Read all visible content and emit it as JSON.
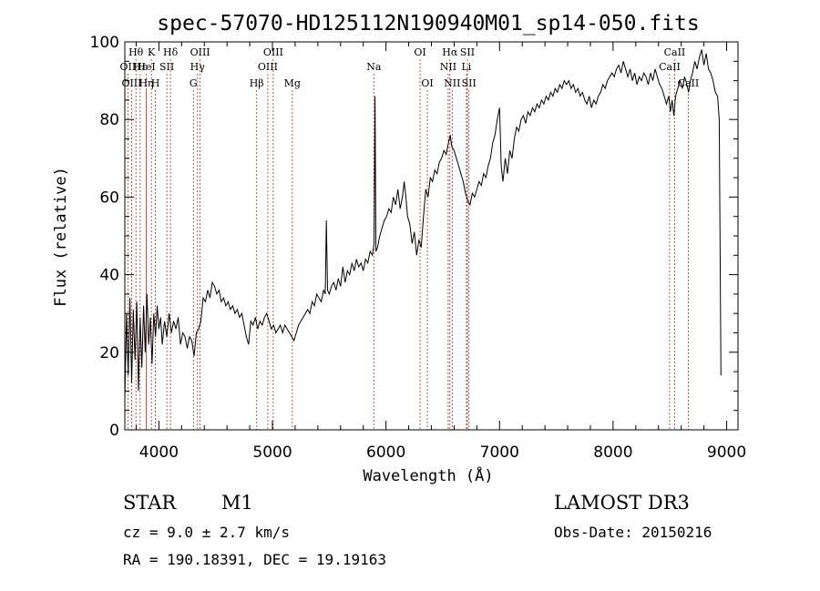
{
  "chart_data": {
    "type": "line",
    "title": "spec-57070-HD125112N190940M01_sp14-050.fits",
    "xlabel": "Wavelength (Å)",
    "ylabel": "Flux (relative)",
    "xlim": [
      3700,
      9100
    ],
    "ylim": [
      0,
      100
    ],
    "xticks": [
      4000,
      5000,
      6000,
      7000,
      8000,
      9000
    ],
    "yticks": [
      0,
      20,
      40,
      60,
      80,
      100
    ],
    "series": [
      {
        "name": "flux",
        "points": [
          [
            3700,
            8
          ],
          [
            3715,
            30
          ],
          [
            3730,
            14
          ],
          [
            3745,
            34
          ],
          [
            3760,
            12
          ],
          [
            3775,
            31
          ],
          [
            3790,
            18
          ],
          [
            3805,
            33
          ],
          [
            3820,
            10
          ],
          [
            3835,
            29
          ],
          [
            3850,
            16
          ],
          [
            3865,
            32
          ],
          [
            3880,
            20
          ],
          [
            3895,
            35
          ],
          [
            3910,
            22
          ],
          [
            3925,
            29
          ],
          [
            3940,
            17
          ],
          [
            3955,
            30
          ],
          [
            3970,
            24
          ],
          [
            3985,
            32
          ],
          [
            4000,
            26
          ],
          [
            4015,
            29
          ],
          [
            4030,
            22
          ],
          [
            4050,
            28
          ],
          [
            4070,
            24
          ],
          [
            4090,
            30
          ],
          [
            4110,
            25
          ],
          [
            4130,
            28
          ],
          [
            4150,
            26
          ],
          [
            4170,
            29
          ],
          [
            4190,
            22
          ],
          [
            4210,
            25
          ],
          [
            4230,
            24
          ],
          [
            4250,
            21
          ],
          [
            4270,
            24
          ],
          [
            4290,
            23
          ],
          [
            4310,
            19
          ],
          [
            4330,
            25
          ],
          [
            4350,
            26
          ],
          [
            4370,
            28
          ],
          [
            4390,
            34
          ],
          [
            4410,
            33
          ],
          [
            4430,
            36
          ],
          [
            4450,
            34
          ],
          [
            4470,
            38
          ],
          [
            4490,
            37
          ],
          [
            4510,
            35
          ],
          [
            4530,
            36
          ],
          [
            4550,
            33
          ],
          [
            4570,
            34
          ],
          [
            4590,
            32
          ],
          [
            4610,
            33
          ],
          [
            4630,
            31
          ],
          [
            4650,
            32
          ],
          [
            4670,
            30
          ],
          [
            4690,
            31
          ],
          [
            4710,
            29
          ],
          [
            4730,
            30
          ],
          [
            4750,
            27
          ],
          [
            4770,
            24
          ],
          [
            4790,
            22
          ],
          [
            4810,
            28
          ],
          [
            4830,
            27
          ],
          [
            4850,
            29
          ],
          [
            4870,
            26
          ],
          [
            4890,
            28
          ],
          [
            4910,
            27
          ],
          [
            4930,
            29
          ],
          [
            4950,
            30
          ],
          [
            4970,
            28
          ],
          [
            4990,
            26
          ],
          [
            5010,
            27
          ],
          [
            5030,
            25
          ],
          [
            5050,
            26
          ],
          [
            5070,
            27
          ],
          [
            5090,
            25
          ],
          [
            5110,
            27
          ],
          [
            5130,
            26
          ],
          [
            5150,
            25
          ],
          [
            5170,
            24
          ],
          [
            5190,
            23
          ],
          [
            5210,
            25
          ],
          [
            5230,
            27
          ],
          [
            5250,
            28
          ],
          [
            5270,
            29
          ],
          [
            5290,
            30
          ],
          [
            5310,
            31
          ],
          [
            5330,
            30
          ],
          [
            5350,
            33
          ],
          [
            5370,
            32
          ],
          [
            5390,
            35
          ],
          [
            5410,
            34
          ],
          [
            5430,
            33
          ],
          [
            5450,
            36
          ],
          [
            5465,
            35
          ],
          [
            5475,
            54
          ],
          [
            5485,
            36
          ],
          [
            5500,
            35
          ],
          [
            5520,
            37
          ],
          [
            5540,
            38
          ],
          [
            5560,
            36
          ],
          [
            5580,
            39
          ],
          [
            5600,
            37
          ],
          [
            5620,
            42
          ],
          [
            5640,
            38
          ],
          [
            5660,
            41
          ],
          [
            5680,
            40
          ],
          [
            5700,
            43
          ],
          [
            5720,
            41
          ],
          [
            5740,
            44
          ],
          [
            5760,
            42
          ],
          [
            5780,
            43
          ],
          [
            5800,
            41
          ],
          [
            5820,
            44
          ],
          [
            5840,
            43
          ],
          [
            5860,
            46
          ],
          [
            5880,
            45
          ],
          [
            5895,
            48
          ],
          [
            5903,
            86
          ],
          [
            5911,
            46
          ],
          [
            5925,
            47
          ],
          [
            5945,
            50
          ],
          [
            5965,
            52
          ],
          [
            5985,
            54
          ],
          [
            6005,
            55
          ],
          [
            6025,
            57
          ],
          [
            6045,
            56
          ],
          [
            6065,
            60
          ],
          [
            6085,
            58
          ],
          [
            6105,
            62
          ],
          [
            6125,
            57
          ],
          [
            6145,
            60
          ],
          [
            6160,
            64
          ],
          [
            6175,
            60
          ],
          [
            6190,
            55
          ],
          [
            6210,
            53
          ],
          [
            6230,
            48
          ],
          [
            6250,
            51
          ],
          [
            6270,
            45
          ],
          [
            6290,
            49
          ],
          [
            6310,
            47
          ],
          [
            6330,
            55
          ],
          [
            6350,
            62
          ],
          [
            6370,
            60
          ],
          [
            6390,
            65
          ],
          [
            6410,
            64
          ],
          [
            6430,
            67
          ],
          [
            6450,
            66
          ],
          [
            6470,
            69
          ],
          [
            6490,
            70
          ],
          [
            6510,
            72
          ],
          [
            6530,
            71
          ],
          [
            6550,
            74
          ],
          [
            6565,
            76
          ],
          [
            6580,
            73
          ],
          [
            6600,
            72
          ],
          [
            6620,
            70
          ],
          [
            6640,
            68
          ],
          [
            6660,
            66
          ],
          [
            6680,
            64
          ],
          [
            6700,
            61
          ],
          [
            6720,
            59
          ],
          [
            6740,
            58
          ],
          [
            6760,
            61
          ],
          [
            6780,
            60
          ],
          [
            6800,
            62
          ],
          [
            6820,
            64
          ],
          [
            6840,
            63
          ],
          [
            6860,
            66
          ],
          [
            6880,
            65
          ],
          [
            6900,
            68
          ],
          [
            6920,
            70
          ],
          [
            6940,
            74
          ],
          [
            6960,
            76
          ],
          [
            6980,
            80
          ],
          [
            7000,
            83
          ],
          [
            7015,
            68
          ],
          [
            7030,
            64
          ],
          [
            7050,
            70
          ],
          [
            7070,
            66
          ],
          [
            7090,
            72
          ],
          [
            7110,
            70
          ],
          [
            7130,
            75
          ],
          [
            7150,
            78
          ],
          [
            7170,
            77
          ],
          [
            7190,
            80
          ],
          [
            7210,
            81
          ],
          [
            7230,
            79
          ],
          [
            7250,
            82
          ],
          [
            7270,
            81
          ],
          [
            7290,
            83
          ],
          [
            7310,
            82
          ],
          [
            7330,
            84
          ],
          [
            7350,
            83
          ],
          [
            7370,
            85
          ],
          [
            7390,
            84
          ],
          [
            7410,
            86
          ],
          [
            7430,
            85
          ],
          [
            7450,
            87
          ],
          [
            7470,
            86
          ],
          [
            7490,
            88
          ],
          [
            7510,
            87
          ],
          [
            7530,
            89
          ],
          [
            7550,
            88
          ],
          [
            7570,
            90
          ],
          [
            7590,
            89
          ],
          [
            7610,
            90
          ],
          [
            7630,
            88
          ],
          [
            7650,
            89
          ],
          [
            7670,
            87
          ],
          [
            7690,
            88
          ],
          [
            7710,
            86
          ],
          [
            7730,
            87
          ],
          [
            7750,
            85
          ],
          [
            7770,
            84
          ],
          [
            7790,
            86
          ],
          [
            7810,
            83
          ],
          [
            7830,
            85
          ],
          [
            7850,
            84
          ],
          [
            7870,
            86
          ],
          [
            7890,
            87
          ],
          [
            7910,
            89
          ],
          [
            7930,
            88
          ],
          [
            7950,
            90
          ],
          [
            7970,
            91
          ],
          [
            7990,
            92
          ],
          [
            8010,
            91
          ],
          [
            8030,
            93
          ],
          [
            8050,
            94
          ],
          [
            8070,
            92
          ],
          [
            8090,
            95
          ],
          [
            8110,
            93
          ],
          [
            8130,
            91
          ],
          [
            8150,
            93
          ],
          [
            8170,
            90
          ],
          [
            8190,
            92
          ],
          [
            8210,
            89
          ],
          [
            8230,
            91
          ],
          [
            8250,
            90
          ],
          [
            8270,
            92
          ],
          [
            8290,
            91
          ],
          [
            8310,
            89
          ],
          [
            8330,
            92
          ],
          [
            8350,
            90
          ],
          [
            8370,
            93
          ],
          [
            8390,
            91
          ],
          [
            8410,
            89
          ],
          [
            8430,
            88
          ],
          [
            8450,
            86
          ],
          [
            8470,
            84
          ],
          [
            8490,
            86
          ],
          [
            8505,
            82
          ],
          [
            8520,
            85
          ],
          [
            8535,
            81
          ],
          [
            8550,
            86
          ],
          [
            8570,
            88
          ],
          [
            8590,
            90
          ],
          [
            8610,
            88
          ],
          [
            8630,
            91
          ],
          [
            8650,
            89
          ],
          [
            8665,
            87
          ],
          [
            8680,
            90
          ],
          [
            8700,
            92
          ],
          [
            8720,
            95
          ],
          [
            8740,
            93
          ],
          [
            8760,
            96
          ],
          [
            8780,
            98
          ],
          [
            8800,
            94
          ],
          [
            8820,
            97
          ],
          [
            8840,
            93
          ],
          [
            8860,
            92
          ],
          [
            8880,
            90
          ],
          [
            8900,
            87
          ],
          [
            8920,
            86
          ],
          [
            8935,
            80
          ],
          [
            8950,
            14
          ]
        ]
      }
    ],
    "spectral_lines": [
      {
        "label": "Hθ",
        "wavelength": 3798,
        "row": 0
      },
      {
        "label": "OII",
        "wavelength": 3727,
        "row": 1
      },
      {
        "label": "OIII",
        "wavelength": 3760,
        "row": 2
      },
      {
        "label": "Hε",
        "wavelength": 3835,
        "row": 1
      },
      {
        "label": "Hη",
        "wavelength": 3889,
        "row": 2
      },
      {
        "label": "K",
        "wavelength": 3934,
        "row": 0
      },
      {
        "label": "HeI",
        "wavelength": 3889,
        "row": 1
      },
      {
        "label": "H",
        "wavelength": 3969,
        "row": 2
      },
      {
        "label": "Hδ",
        "wavelength": 4102,
        "row": 0
      },
      {
        "label": "SII",
        "wavelength": 4070,
        "row": 1
      },
      {
        "label": "OIII",
        "wavelength": 4363,
        "row": 0
      },
      {
        "label": "Hγ",
        "wavelength": 4340,
        "row": 1
      },
      {
        "label": "G",
        "wavelength": 4304,
        "row": 2
      },
      {
        "label": "Hβ",
        "wavelength": 4861,
        "row": 2
      },
      {
        "label": "OIII",
        "wavelength": 4959,
        "row": 1
      },
      {
        "label": "OIII",
        "wavelength": 5007,
        "row": 0
      },
      {
        "label": "Mg",
        "wavelength": 5175,
        "row": 2
      },
      {
        "label": "Na",
        "wavelength": 5893,
        "row": 1
      },
      {
        "label": "OI",
        "wavelength": 6300,
        "row": 0
      },
      {
        "label": "OI",
        "wavelength": 6364,
        "row": 2
      },
      {
        "label": "Hα",
        "wavelength": 6563,
        "row": 0
      },
      {
        "label": "NII",
        "wavelength": 6548,
        "row": 1
      },
      {
        "label": "NII",
        "wavelength": 6583,
        "row": 2
      },
      {
        "label": "SII",
        "wavelength": 6717,
        "row": 0
      },
      {
        "label": "Li",
        "wavelength": 6708,
        "row": 1
      },
      {
        "label": "SII",
        "wavelength": 6731,
        "row": 2
      },
      {
        "label": "CaII",
        "wavelength": 8542,
        "row": 0
      },
      {
        "label": "CaII",
        "wavelength": 8498,
        "row": 1
      },
      {
        "label": "CaII",
        "wavelength": 8662,
        "row": 2
      }
    ]
  },
  "info": {
    "object_class": "STAR",
    "subclass": "M1",
    "survey": "LAMOST DR3",
    "cz": "cz = 9.0 ± 2.7 km/s",
    "obs_date": "Obs-Date: 20150216",
    "coords": "RA = 190.18391, DEC =  19.19163"
  }
}
